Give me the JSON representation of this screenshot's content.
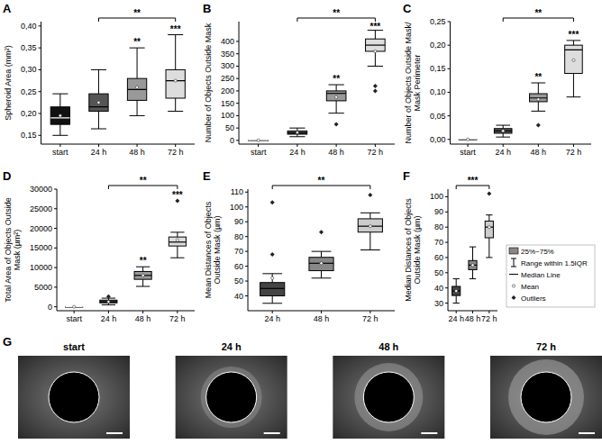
{
  "chart_data": [
    {
      "type": "box",
      "panel": "A",
      "y_label": "Spheroid Area (mm²)",
      "categories": [
        "start",
        "24 h",
        "48 h",
        "72 h"
      ],
      "colors": [
        "#111111",
        "#555555",
        "#999999",
        "#dddddd"
      ],
      "ylim": [
        0.13,
        0.41
      ],
      "yticks": [
        {
          "value": 0.15,
          "label": "0,15"
        },
        {
          "value": 0.2,
          "label": "0,20"
        },
        {
          "value": 0.25,
          "label": "0,25"
        },
        {
          "value": 0.3,
          "label": "0,30"
        },
        {
          "value": 0.35,
          "label": "0,35"
        },
        {
          "value": 0.4,
          "label": "0,40"
        }
      ],
      "boxes": [
        {
          "low": 0.15,
          "q1": 0.175,
          "median": 0.19,
          "q3": 0.215,
          "high": 0.245,
          "mean": 0.195,
          "outliers": []
        },
        {
          "low": 0.165,
          "q1": 0.205,
          "median": 0.215,
          "q3": 0.245,
          "high": 0.3,
          "mean": 0.225,
          "outliers": []
        },
        {
          "low": 0.195,
          "q1": 0.23,
          "median": 0.255,
          "q3": 0.28,
          "high": 0.35,
          "mean": 0.26,
          "outliers": []
        },
        {
          "low": 0.205,
          "q1": 0.235,
          "median": 0.275,
          "q3": 0.3,
          "high": 0.38,
          "mean": 0.275,
          "outliers": []
        }
      ],
      "annotations": [
        {
          "category": "48 h",
          "label": "**"
        },
        {
          "category": "72 h",
          "label": "***"
        }
      ],
      "bracket": {
        "from": "24 h",
        "to": "72 h",
        "label": "**"
      }
    },
    {
      "type": "box",
      "panel": "B",
      "y_label": "Number of Objects Outside Mask",
      "categories": [
        "start",
        "24 h",
        "48 h",
        "72 h"
      ],
      "colors": [
        "#111111",
        "#555555",
        "#999999",
        "#dddddd"
      ],
      "ylim": [
        -15,
        480
      ],
      "yticks": [
        0,
        50,
        100,
        150,
        200,
        250,
        300,
        350,
        400
      ],
      "boxes": [
        {
          "low": 0,
          "q1": 0,
          "median": 0,
          "q3": 0,
          "high": 0,
          "mean": 0,
          "outliers": []
        },
        {
          "low": 15,
          "q1": 25,
          "median": 30,
          "q3": 38,
          "high": 50,
          "mean": 32,
          "outliers": []
        },
        {
          "low": 110,
          "q1": 160,
          "median": 190,
          "q3": 200,
          "high": 225,
          "mean": 175,
          "outliers": [
            65
          ]
        },
        {
          "low": 300,
          "q1": 360,
          "median": 385,
          "q3": 410,
          "high": 445,
          "mean": 360,
          "outliers": [
            220,
            200
          ]
        }
      ],
      "annotations": [
        {
          "category": "48 h",
          "label": "**"
        },
        {
          "category": "72 h",
          "label": "***"
        }
      ],
      "bracket": {
        "from": "24 h",
        "to": "72 h",
        "label": "**"
      }
    },
    {
      "type": "box",
      "panel": "C",
      "y_label": "Number of Objects Outside Mask/ Mask Perimeter",
      "categories": [
        "start",
        "24 h",
        "48 h",
        "72 h"
      ],
      "colors": [
        "#111111",
        "#555555",
        "#999999",
        "#dddddd"
      ],
      "ylim": [
        -0.01,
        0.25
      ],
      "yticks": [
        {
          "value": 0,
          "label": "0,00"
        },
        {
          "value": 0.05,
          "label": "0,05"
        },
        {
          "value": 0.1,
          "label": "0,10"
        },
        {
          "value": 0.15,
          "label": "0,15"
        },
        {
          "value": 0.2,
          "label": "0,20"
        },
        {
          "value": 0.25,
          "label": "0,25"
        }
      ],
      "boxes": [
        {
          "low": 0,
          "q1": 0,
          "median": 0,
          "q3": 0,
          "high": 0,
          "mean": 0,
          "outliers": []
        },
        {
          "low": 0.005,
          "q1": 0.013,
          "median": 0.018,
          "q3": 0.023,
          "high": 0.03,
          "mean": 0.018,
          "outliers": []
        },
        {
          "low": 0.06,
          "q1": 0.08,
          "median": 0.088,
          "q3": 0.097,
          "high": 0.12,
          "mean": 0.085,
          "outliers": [
            0.03
          ]
        },
        {
          "low": 0.09,
          "q1": 0.14,
          "median": 0.19,
          "q3": 0.2,
          "high": 0.21,
          "mean": 0.168,
          "outliers": []
        }
      ],
      "annotations": [
        {
          "category": "48 h",
          "label": "**"
        },
        {
          "category": "72 h",
          "label": "***"
        }
      ],
      "bracket": {
        "from": "24 h",
        "to": "72 h",
        "label": "**"
      }
    },
    {
      "type": "box",
      "panel": "D",
      "y_label": "Total Area of Objects Outside Mask (µm²)",
      "categories": [
        "start",
        "24 h",
        "48 h",
        "72 h"
      ],
      "colors": [
        "#111111",
        "#555555",
        "#999999",
        "#dddddd"
      ],
      "ylim": [
        -1000,
        30000
      ],
      "yticks": [
        0,
        5000,
        10000,
        15000,
        20000,
        25000,
        30000
      ],
      "boxes": [
        {
          "low": 0,
          "q1": 0,
          "median": 0,
          "q3": 0,
          "high": 0,
          "mean": 0,
          "outliers": []
        },
        {
          "low": 500,
          "q1": 1000,
          "median": 1300,
          "q3": 1700,
          "high": 2200,
          "mean": 1300,
          "outliers": [
            2600
          ]
        },
        {
          "low": 5200,
          "q1": 7000,
          "median": 8000,
          "q3": 9000,
          "high": 10200,
          "mean": 8000,
          "outliers": []
        },
        {
          "low": 12500,
          "q1": 15500,
          "median": 16500,
          "q3": 17800,
          "high": 19000,
          "mean": 17000,
          "outliers": [
            27000
          ]
        }
      ],
      "annotations": [
        {
          "category": "48 h",
          "label": "**"
        },
        {
          "category": "72 h",
          "label": "***"
        }
      ],
      "bracket": {
        "from": "24 h",
        "to": "72 h",
        "label": "**"
      }
    },
    {
      "type": "box",
      "panel": "E",
      "y_label": "Mean Distances of Objects Outside Mask (µm)",
      "categories": [
        "24 h",
        "48 h",
        "72 h"
      ],
      "colors": [
        "#444444",
        "#888888",
        "#cccccc"
      ],
      "ylim": [
        30,
        112
      ],
      "yticks": [
        40,
        50,
        60,
        70,
        80,
        90,
        100,
        110
      ],
      "boxes": [
        {
          "low": 35,
          "q1": 40,
          "median": 45,
          "q3": 49,
          "high": 55,
          "mean": 52,
          "outliers": [
            68,
            103
          ]
        },
        {
          "low": 52,
          "q1": 57,
          "median": 62,
          "q3": 66,
          "high": 70,
          "mean": 62,
          "outliers": [
            83
          ]
        },
        {
          "low": 71,
          "q1": 83,
          "median": 87,
          "q3": 92,
          "high": 96,
          "mean": 87,
          "outliers": [
            108
          ]
        }
      ],
      "annotations": [],
      "bracket": {
        "from": "24 h",
        "to": "72 h",
        "label": "**"
      }
    },
    {
      "type": "box",
      "panel": "F",
      "y_label": "Median Distances of Objects Outside Mask (µm)",
      "categories": [
        "24 h",
        "48 h",
        "72 h"
      ],
      "colors": [
        "#444444",
        "#888888",
        "#cccccc"
      ],
      "ylim": [
        25,
        105
      ],
      "yticks": [
        30,
        40,
        50,
        60,
        70,
        80,
        90,
        100
      ],
      "boxes": [
        {
          "low": 30,
          "q1": 35,
          "median": 38,
          "q3": 41,
          "high": 46,
          "mean": 38,
          "outliers": []
        },
        {
          "low": 46,
          "q1": 52,
          "median": 55,
          "q3": 58,
          "high": 67,
          "mean": 55,
          "outliers": []
        },
        {
          "low": 60,
          "q1": 73,
          "median": 80,
          "q3": 84,
          "high": 88,
          "mean": 80,
          "outliers": [
            102
          ]
        }
      ],
      "annotations": [],
      "bracket": {
        "from": "24 h",
        "to": "72 h",
        "label": "***"
      },
      "legend": "right",
      "legend_labels": [
        "25%~75%",
        "Range within 1.5IQR",
        "Median Line",
        "Mean",
        "Outliers"
      ]
    }
  ],
  "image_panel": {
    "panel": "G",
    "titles": [
      "start",
      "24 h",
      "48 h",
      "72 h"
    ]
  }
}
